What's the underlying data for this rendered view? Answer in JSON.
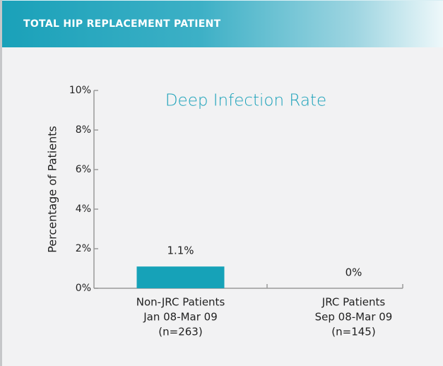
{
  "header": {
    "title": "TOTAL HIP REPLACEMENT PATIENT"
  },
  "chart_data": {
    "type": "bar",
    "title": "Deep Infection Rate",
    "y_label": "Percentage of Patients",
    "categories": [
      [
        "Non-JRC Patients",
        "Jan 08-Mar 09",
        "(n=263)"
      ],
      [
        "JRC Patients",
        "Sep 08-Mar 09",
        "(n=145)"
      ]
    ],
    "values": [
      1.1,
      0
    ],
    "value_labels": [
      "1.1%",
      "0%"
    ],
    "color": "#16a2b8",
    "ylim": [
      0,
      10
    ],
    "yticks": [
      {
        "value": 0,
        "label": "0%"
      },
      {
        "value": 2,
        "label": "2%"
      },
      {
        "value": 4,
        "label": "4%"
      },
      {
        "value": 6,
        "label": "6%"
      },
      {
        "value": 8,
        "label": "8%"
      },
      {
        "value": 10,
        "label": "10%"
      }
    ]
  }
}
